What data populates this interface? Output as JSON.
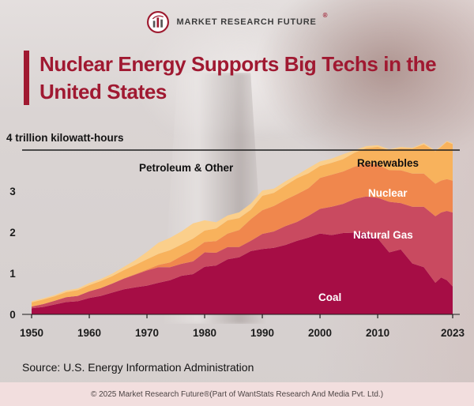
{
  "header": {
    "brand": "MARKET RESEARCH FUTURE",
    "registered": "®"
  },
  "title": {
    "line1": "Nuclear Energy Supports Big Techs in the",
    "line2": "United States"
  },
  "theme": {
    "accent_red": "#a01931",
    "page_bg": "#dad4d3",
    "footer_bg": "#f2dede"
  },
  "chart_data": {
    "type": "area",
    "stacked": true,
    "y_top_label": "4 trillion kilowatt-hours",
    "ylim": [
      0,
      4.25
    ],
    "top_line_value": 4,
    "y_ticks": [
      0,
      1,
      2,
      3
    ],
    "x_ticks": [
      1950,
      1960,
      1970,
      1980,
      1990,
      2000,
      2010,
      2023
    ],
    "x": [
      1950,
      1952,
      1954,
      1956,
      1958,
      1960,
      1962,
      1964,
      1966,
      1968,
      1970,
      1972,
      1974,
      1976,
      1978,
      1980,
      1982,
      1984,
      1986,
      1988,
      1990,
      1992,
      1994,
      1996,
      1998,
      2000,
      2002,
      2004,
      2006,
      2008,
      2010,
      2012,
      2014,
      2016,
      2018,
      2020,
      2021,
      2022,
      2023
    ],
    "series": [
      {
        "name": "Coal",
        "color": "#a60d45",
        "label_color": "#ffffff",
        "values": [
          0.15,
          0.18,
          0.24,
          0.3,
          0.32,
          0.4,
          0.45,
          0.53,
          0.61,
          0.66,
          0.7,
          0.77,
          0.83,
          0.94,
          0.98,
          1.16,
          1.19,
          1.34,
          1.39,
          1.54,
          1.59,
          1.62,
          1.69,
          1.79,
          1.87,
          1.97,
          1.93,
          1.98,
          1.99,
          1.99,
          1.85,
          1.51,
          1.58,
          1.24,
          1.15,
          0.77,
          0.9,
          0.83,
          0.68
        ]
      },
      {
        "name": "Natural Gas",
        "color": "#c94a60",
        "label_color": "#ffffff",
        "values": [
          0.04,
          0.07,
          0.09,
          0.12,
          0.13,
          0.16,
          0.19,
          0.22,
          0.26,
          0.31,
          0.37,
          0.38,
          0.32,
          0.29,
          0.31,
          0.35,
          0.31,
          0.3,
          0.25,
          0.25,
          0.37,
          0.4,
          0.46,
          0.46,
          0.53,
          0.6,
          0.69,
          0.71,
          0.82,
          0.88,
          0.99,
          1.23,
          1.13,
          1.38,
          1.47,
          1.62,
          1.58,
          1.69,
          1.8
        ]
      },
      {
        "name": "Nuclear",
        "color": "#f0874d",
        "label_color": "#ffffff",
        "values": [
          0,
          0,
          0,
          0,
          0,
          0.001,
          0.002,
          0.003,
          0.006,
          0.013,
          0.022,
          0.054,
          0.114,
          0.191,
          0.276,
          0.251,
          0.283,
          0.328,
          0.414,
          0.527,
          0.577,
          0.619,
          0.64,
          0.675,
          0.674,
          0.754,
          0.78,
          0.789,
          0.787,
          0.806,
          0.807,
          0.769,
          0.797,
          0.806,
          0.807,
          0.79,
          0.778,
          0.772,
          0.775
        ]
      },
      {
        "name": "Renewables",
        "color": "#f8b25c",
        "label_color": "#101010",
        "values": [
          0.1,
          0.11,
          0.11,
          0.12,
          0.14,
          0.15,
          0.17,
          0.18,
          0.2,
          0.22,
          0.25,
          0.27,
          0.3,
          0.28,
          0.28,
          0.28,
          0.31,
          0.32,
          0.29,
          0.23,
          0.35,
          0.32,
          0.35,
          0.39,
          0.36,
          0.29,
          0.29,
          0.3,
          0.34,
          0.37,
          0.43,
          0.49,
          0.54,
          0.61,
          0.71,
          0.79,
          0.82,
          0.91,
          0.89
        ]
      },
      {
        "name": "Petroleum & Other",
        "color": "#fbcf8b",
        "label_color": "#101010",
        "values": [
          0.03,
          0.03,
          0.03,
          0.04,
          0.04,
          0.05,
          0.05,
          0.06,
          0.08,
          0.12,
          0.18,
          0.27,
          0.3,
          0.32,
          0.37,
          0.25,
          0.15,
          0.12,
          0.14,
          0.15,
          0.13,
          0.1,
          0.1,
          0.08,
          0.13,
          0.11,
          0.1,
          0.12,
          0.06,
          0.05,
          0.04,
          0.02,
          0.03,
          0.02,
          0.03,
          0.02,
          0.02,
          0.02,
          0.02
        ]
      }
    ]
  },
  "source": "Source: U.S. Energy Information Administration",
  "footer": "© 2025 Market Research Future®(Part of WantStats Research And Media Pvt. Ltd.)"
}
